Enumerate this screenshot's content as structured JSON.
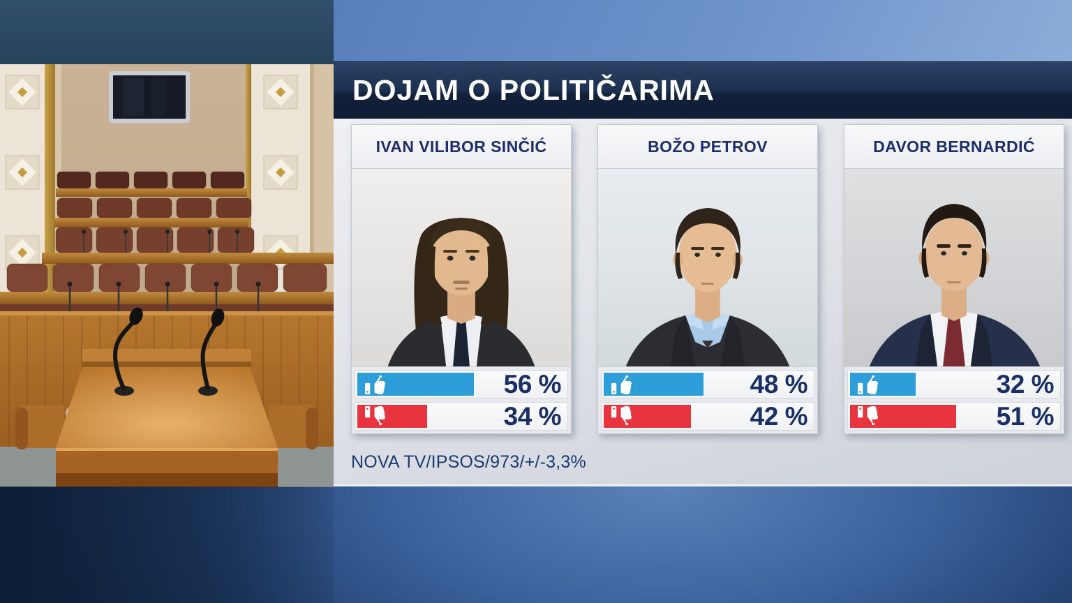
{
  "header": {
    "title": "DOJAM O POLITIČARIMA"
  },
  "left_panel": {
    "photo": "croatian-parliament-chamber-empty-with-speaker-podium"
  },
  "icons": {
    "up": "thumbs-up-icon",
    "down": "thumbs-down-icon"
  },
  "colors": {
    "approve_bar": "#2e9ed8",
    "disapprove_bar": "#e8343f",
    "title_bar": "#16263f",
    "name_text": "#1d2d69",
    "percent_text": "#1a2f66",
    "top_strip": "#6d93ca",
    "footer_blue": "#3c639d"
  },
  "cards": [
    {
      "name": "IVAN VILIBOR SINČIĆ",
      "up": {
        "value": 56,
        "label": "56 %"
      },
      "down": {
        "value": 34,
        "label": "34 %"
      }
    },
    {
      "name": "BOŽO PETROV",
      "up": {
        "value": 48,
        "label": "48 %"
      },
      "down": {
        "value": 42,
        "label": "42 %"
      }
    },
    {
      "name": "DAVOR BERNARDIĆ",
      "up": {
        "value": 32,
        "label": "32 %"
      },
      "down": {
        "value": 51,
        "label": "51 %"
      }
    }
  ],
  "source": {
    "text": "NOVA TV/IPSOS/973/+/-3,3%"
  },
  "chart_data": {
    "type": "bar",
    "title": "DOJAM O POLITIČARIMA",
    "categories": [
      "IVAN VILIBOR SINČIĆ",
      "BOŽO PETROV",
      "DAVOR BERNARDIĆ"
    ],
    "series": [
      {
        "name": "thumbs-up (positive impression)",
        "values": [
          56,
          48,
          32
        ],
        "color": "#2e9ed8"
      },
      {
        "name": "thumbs-down (negative impression)",
        "values": [
          34,
          42,
          51
        ],
        "color": "#e8343f"
      }
    ],
    "unit": "%",
    "xlim": [
      0,
      100
    ],
    "legend_position": "icons-in-bars",
    "source": "NOVA TV/IPSOS/973/+/-3,3%"
  }
}
